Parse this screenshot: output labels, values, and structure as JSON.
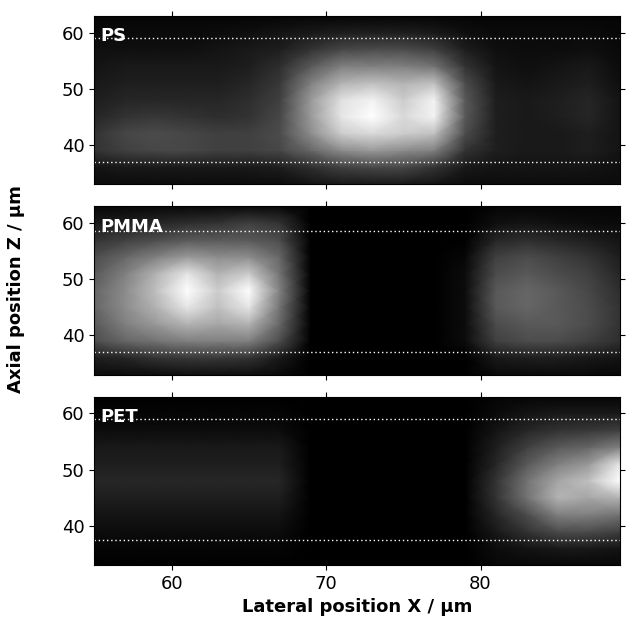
{
  "chart_data": [
    {
      "type": "heatmap",
      "title": "PS",
      "x": [
        55,
        57,
        59,
        61,
        63,
        65,
        67,
        69,
        71,
        73,
        75,
        77,
        79,
        81,
        83,
        85,
        87,
        89
      ],
      "y": [
        33,
        36,
        39,
        42,
        45,
        48,
        51,
        54,
        57,
        60,
        63
      ],
      "cells": [
        [
          0.05,
          0.05,
          0.05,
          0.05,
          0.05,
          0.05,
          0.05,
          0.08,
          0.1,
          0.1,
          0.1,
          0.08,
          0.05,
          0.05,
          0.05,
          0.05,
          0.05,
          0.05
        ],
        [
          0.08,
          0.1,
          0.1,
          0.1,
          0.1,
          0.1,
          0.12,
          0.18,
          0.25,
          0.28,
          0.28,
          0.2,
          0.1,
          0.08,
          0.08,
          0.08,
          0.08,
          0.06
        ],
        [
          0.2,
          0.25,
          0.28,
          0.28,
          0.25,
          0.25,
          0.28,
          0.4,
          0.55,
          0.6,
          0.55,
          0.5,
          0.2,
          0.12,
          0.1,
          0.1,
          0.12,
          0.08
        ],
        [
          0.2,
          0.28,
          0.3,
          0.28,
          0.25,
          0.25,
          0.3,
          0.55,
          0.8,
          0.85,
          0.8,
          0.75,
          0.3,
          0.12,
          0.1,
          0.1,
          0.12,
          0.08
        ],
        [
          0.15,
          0.2,
          0.22,
          0.2,
          0.18,
          0.2,
          0.28,
          0.6,
          0.9,
          1.0,
          0.85,
          0.95,
          0.35,
          0.12,
          0.1,
          0.12,
          0.15,
          0.08
        ],
        [
          0.12,
          0.15,
          0.15,
          0.15,
          0.15,
          0.18,
          0.25,
          0.6,
          0.88,
          0.95,
          0.8,
          0.95,
          0.35,
          0.12,
          0.1,
          0.12,
          0.15,
          0.08
        ],
        [
          0.1,
          0.12,
          0.12,
          0.12,
          0.12,
          0.15,
          0.22,
          0.5,
          0.7,
          0.75,
          0.7,
          0.75,
          0.3,
          0.1,
          0.08,
          0.1,
          0.12,
          0.06
        ],
        [
          0.08,
          0.1,
          0.1,
          0.1,
          0.1,
          0.12,
          0.18,
          0.35,
          0.5,
          0.5,
          0.5,
          0.45,
          0.2,
          0.08,
          0.06,
          0.08,
          0.1,
          0.05
        ],
        [
          0.06,
          0.06,
          0.06,
          0.06,
          0.08,
          0.1,
          0.12,
          0.2,
          0.28,
          0.3,
          0.3,
          0.25,
          0.12,
          0.06,
          0.05,
          0.05,
          0.06,
          0.04
        ],
        [
          0.04,
          0.04,
          0.04,
          0.04,
          0.05,
          0.06,
          0.08,
          0.1,
          0.12,
          0.12,
          0.12,
          0.1,
          0.06,
          0.04,
          0.04,
          0.04,
          0.04,
          0.03
        ],
        [
          0.02,
          0.02,
          0.02,
          0.02,
          0.02,
          0.02,
          0.02,
          0.02,
          0.02,
          0.02,
          0.02,
          0.02,
          0.02,
          0.02,
          0.02,
          0.02,
          0.02,
          0.02
        ]
      ],
      "color_range": [
        0,
        1
      ],
      "reference_lines": [
        59,
        37
      ],
      "xlim": [
        55,
        89
      ],
      "ylim": [
        33,
        63
      ],
      "xticks": [
        60,
        70,
        80
      ],
      "yticks": [
        40,
        50,
        60
      ],
      "tick_labels": "y"
    },
    {
      "type": "heatmap",
      "title": "PMMA",
      "ylabel": "Axial position Z / µm",
      "x": [
        55,
        57,
        59,
        61,
        63,
        65,
        67,
        69,
        71,
        73,
        75,
        77,
        79,
        81,
        83,
        85,
        87,
        89
      ],
      "y": [
        33,
        36,
        39,
        42,
        45,
        48,
        51,
        54,
        57,
        60,
        63
      ],
      "cells": [
        [
          0.05,
          0.05,
          0.05,
          0.06,
          0.06,
          0.06,
          0.04,
          0,
          0,
          0,
          0,
          0,
          0,
          0.04,
          0.04,
          0.04,
          0.04,
          0.03
        ],
        [
          0.12,
          0.15,
          0.2,
          0.22,
          0.22,
          0.2,
          0.1,
          0,
          0,
          0,
          0,
          0,
          0,
          0.1,
          0.12,
          0.12,
          0.1,
          0.08
        ],
        [
          0.3,
          0.4,
          0.45,
          0.5,
          0.5,
          0.5,
          0.3,
          0,
          0,
          0,
          0,
          0,
          0.05,
          0.25,
          0.3,
          0.3,
          0.25,
          0.18
        ],
        [
          0.35,
          0.5,
          0.6,
          0.7,
          0.65,
          0.7,
          0.4,
          0,
          0,
          0,
          0,
          0,
          0.05,
          0.3,
          0.35,
          0.35,
          0.3,
          0.2
        ],
        [
          0.4,
          0.55,
          0.7,
          0.9,
          0.75,
          0.9,
          0.45,
          0,
          0,
          0,
          0,
          0,
          0.05,
          0.35,
          0.4,
          0.35,
          0.3,
          0.2
        ],
        [
          0.4,
          0.55,
          0.75,
          1.0,
          0.8,
          1.0,
          0.5,
          0,
          0,
          0,
          0,
          0,
          0.05,
          0.35,
          0.4,
          0.35,
          0.28,
          0.18
        ],
        [
          0.35,
          0.5,
          0.7,
          0.9,
          0.7,
          0.8,
          0.45,
          0,
          0,
          0,
          0,
          0,
          0.05,
          0.3,
          0.35,
          0.3,
          0.25,
          0.15
        ],
        [
          0.3,
          0.4,
          0.5,
          0.6,
          0.55,
          0.55,
          0.4,
          0,
          0,
          0,
          0,
          0,
          0.03,
          0.25,
          0.3,
          0.25,
          0.2,
          0.12
        ],
        [
          0.2,
          0.25,
          0.3,
          0.35,
          0.35,
          0.35,
          0.3,
          0,
          0,
          0,
          0,
          0,
          0,
          0.15,
          0.18,
          0.15,
          0.12,
          0.08
        ],
        [
          0.1,
          0.12,
          0.15,
          0.18,
          0.2,
          0.25,
          0.2,
          0,
          0,
          0,
          0,
          0,
          0,
          0.06,
          0.08,
          0.06,
          0.05,
          0.04
        ],
        [
          0.03,
          0.03,
          0.03,
          0.03,
          0.03,
          0.03,
          0.03,
          0,
          0,
          0,
          0,
          0,
          0,
          0.02,
          0.02,
          0.02,
          0.02,
          0.02
        ]
      ],
      "color_range": [
        0,
        1
      ],
      "reference_lines": [
        58.5,
        37
      ],
      "xlim": [
        55,
        89
      ],
      "ylim": [
        33,
        63
      ],
      "xticks": [
        60,
        70,
        80
      ],
      "yticks": [
        40,
        50,
        60
      ],
      "tick_labels": "y"
    },
    {
      "type": "heatmap",
      "title": "PET",
      "xlabel": "Lateral position X / µm",
      "x": [
        55,
        57,
        59,
        61,
        63,
        65,
        67,
        69,
        71,
        73,
        75,
        77,
        79,
        81,
        83,
        85,
        87,
        89
      ],
      "y": [
        33,
        36,
        39,
        42,
        45,
        48,
        51,
        54,
        57,
        60,
        63
      ],
      "cells": [
        [
          0,
          0,
          0,
          0,
          0,
          0,
          0,
          0,
          0,
          0,
          0,
          0,
          0,
          0.03,
          0.03,
          0.03,
          0.03,
          0.03
        ],
        [
          0.02,
          0.02,
          0.02,
          0.02,
          0.02,
          0.02,
          0.02,
          0,
          0,
          0,
          0,
          0,
          0,
          0.05,
          0.08,
          0.1,
          0.1,
          0.08
        ],
        [
          0.05,
          0.05,
          0.05,
          0.05,
          0.05,
          0.05,
          0.05,
          0,
          0,
          0,
          0,
          0,
          0,
          0.1,
          0.2,
          0.3,
          0.3,
          0.25
        ],
        [
          0.08,
          0.08,
          0.08,
          0.08,
          0.08,
          0.08,
          0.08,
          0,
          0,
          0,
          0,
          0,
          0,
          0.15,
          0.3,
          0.5,
          0.5,
          0.45
        ],
        [
          0.12,
          0.12,
          0.12,
          0.12,
          0.12,
          0.12,
          0.12,
          0,
          0,
          0,
          0,
          0,
          0,
          0.2,
          0.45,
          0.7,
          0.65,
          0.7
        ],
        [
          0.15,
          0.15,
          0.15,
          0.15,
          0.15,
          0.15,
          0.15,
          0,
          0,
          0,
          0,
          0,
          0,
          0.2,
          0.45,
          0.65,
          0.75,
          1.0
        ],
        [
          0.12,
          0.12,
          0.12,
          0.12,
          0.12,
          0.12,
          0.12,
          0,
          0,
          0,
          0,
          0,
          0,
          0.15,
          0.35,
          0.5,
          0.6,
          0.9
        ],
        [
          0.1,
          0.1,
          0.1,
          0.1,
          0.1,
          0.1,
          0.1,
          0,
          0,
          0,
          0,
          0,
          0,
          0.12,
          0.25,
          0.35,
          0.4,
          0.5
        ],
        [
          0.05,
          0.05,
          0.05,
          0.05,
          0.05,
          0.05,
          0.05,
          0,
          0,
          0,
          0,
          0,
          0,
          0.08,
          0.15,
          0.2,
          0.22,
          0.25
        ],
        [
          0.02,
          0.02,
          0.02,
          0.02,
          0.02,
          0.02,
          0.02,
          0,
          0,
          0,
          0,
          0,
          0,
          0.04,
          0.08,
          0.1,
          0.1,
          0.1
        ],
        [
          0,
          0,
          0,
          0,
          0,
          0,
          0,
          0,
          0,
          0,
          0,
          0,
          0,
          0.02,
          0.02,
          0.02,
          0.02,
          0.02
        ]
      ],
      "color_range": [
        0,
        1
      ],
      "reference_lines": [
        59,
        37.5
      ],
      "xlim": [
        55,
        89
      ],
      "ylim": [
        33,
        63
      ],
      "xticks": [
        60,
        70,
        80
      ],
      "yticks": [
        40,
        50,
        60
      ]
    }
  ]
}
